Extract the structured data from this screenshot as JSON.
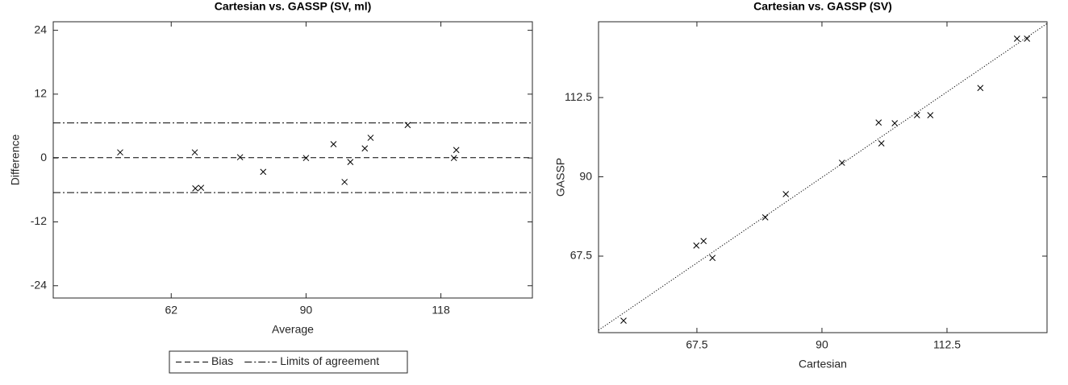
{
  "chart_data": [
    {
      "type": "scatter",
      "title": "Cartesian vs. GASSP (SV, ml)",
      "x_label": "Average",
      "y_label": "Difference",
      "x": [
        51.4,
        66.9,
        67.0,
        68.2,
        76.3,
        81.1,
        90.0,
        95.7,
        98.0,
        99.2,
        102.2,
        103.4,
        111.1,
        120.7,
        121.2
      ],
      "values": [
        1.06,
        1.06,
        -5.7,
        -5.6,
        0.15,
        -2.6,
        0,
        2.6,
        -4.5,
        -0.75,
        1.8,
        3.8,
        6.2,
        0,
        1.5
      ],
      "color": "#000000",
      "xlim": [
        37.5,
        137
      ],
      "xticks": [
        62,
        90,
        118
      ],
      "ylim": [
        -26.3,
        25.6
      ],
      "yticks": [
        -24,
        -12,
        0,
        12,
        24
      ],
      "ref_lines": [
        {
          "name": "Bias",
          "values": [
            0.07
          ],
          "style": "dashed"
        },
        {
          "name": "Limits of agreement",
          "values": [
            6.6,
            -6.5
          ],
          "style": "dashdot"
        }
      ],
      "legend": "below"
    },
    {
      "type": "scatter",
      "title": "Cartesian vs. GASSP (SV)",
      "x_label": "Cartesian",
      "y_label": "GASSP",
      "x": [
        54.3,
        67.4,
        68.7,
        70.3,
        79.8,
        83.5,
        93.6,
        100.2,
        100.7,
        103.1,
        107.1,
        109.5,
        118.5,
        125.1,
        126.9
      ],
      "values": [
        49.2,
        70.5,
        71.8,
        67.0,
        78.5,
        85.1,
        94.0,
        105.4,
        99.5,
        105.2,
        107.5,
        107.5,
        115.2,
        129.2,
        129.2
      ],
      "color": "#000000",
      "xlim": [
        49.8,
        130.5
      ],
      "xticks": [
        67.5,
        90,
        112.5
      ],
      "ylim": [
        45.8,
        134
      ],
      "yticks": [
        67.5,
        90,
        112.5
      ],
      "fit_line": {
        "x": [
          49.8,
          130.5
        ],
        "y": [
          46.5,
          133.5
        ],
        "style": "dotted"
      }
    }
  ]
}
